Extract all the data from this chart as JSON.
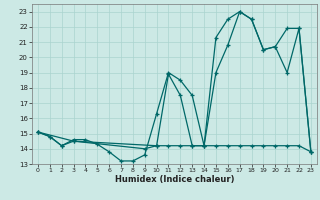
{
  "xlabel": "Humidex (Indice chaleur)",
  "xlim": [
    -0.5,
    23.5
  ],
  "ylim": [
    13,
    23.5
  ],
  "yticks": [
    13,
    14,
    15,
    16,
    17,
    18,
    19,
    20,
    21,
    22,
    23
  ],
  "xticks": [
    0,
    1,
    2,
    3,
    4,
    5,
    6,
    7,
    8,
    9,
    10,
    11,
    12,
    13,
    14,
    15,
    16,
    17,
    18,
    19,
    20,
    21,
    22,
    23
  ],
  "bg_color": "#cce9e5",
  "line_color": "#006868",
  "grid_color": "#aad4cf",
  "line1_x": [
    0,
    1,
    2,
    3,
    4,
    5,
    6,
    7,
    8,
    9,
    10,
    11,
    12,
    13,
    14,
    15,
    16,
    17,
    18,
    19,
    20,
    21,
    22,
    23
  ],
  "line1_y": [
    15.1,
    14.8,
    14.2,
    14.6,
    14.6,
    14.3,
    13.8,
    13.2,
    13.2,
    13.6,
    16.3,
    19.0,
    18.5,
    17.5,
    14.2,
    21.3,
    22.5,
    23.0,
    22.5,
    20.5,
    20.7,
    19.0,
    21.9,
    13.8
  ],
  "line2_x": [
    0,
    1,
    2,
    3,
    9,
    10,
    11,
    12,
    13,
    14,
    15,
    16,
    17,
    18,
    19,
    20,
    21,
    22,
    23
  ],
  "line2_y": [
    15.1,
    14.8,
    14.2,
    14.5,
    14.0,
    14.2,
    14.2,
    14.2,
    14.2,
    14.2,
    14.2,
    14.2,
    14.2,
    14.2,
    14.2,
    14.2,
    14.2,
    14.2,
    13.8
  ],
  "line3_x": [
    0,
    3,
    10,
    11,
    12,
    13,
    14,
    15,
    16,
    17,
    18,
    19,
    20,
    21,
    22,
    23
  ],
  "line3_y": [
    15.1,
    14.5,
    14.2,
    18.9,
    17.5,
    14.2,
    14.2,
    19.0,
    20.8,
    23.0,
    22.5,
    20.5,
    20.7,
    21.9,
    21.9,
    13.8
  ]
}
